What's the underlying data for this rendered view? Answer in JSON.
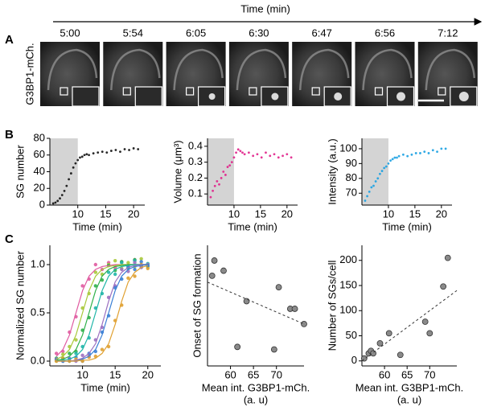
{
  "panel_labels": [
    "A",
    "B",
    "C"
  ],
  "panel_a": {
    "axis_label": "Time (min)",
    "channel": "G3BP1-mCh.",
    "times": [
      "5:00",
      "5:54",
      "6:05",
      "6:30",
      "6:47",
      "6:56",
      "7:12"
    ]
  },
  "chart_data": [
    {
      "type": "scatter",
      "ylabel": "SG number",
      "xlabel": "Time (min)",
      "xlim": [
        5,
        22
      ],
      "ylim": [
        0,
        80
      ],
      "xticks": [
        10,
        15,
        20
      ],
      "yticks": [
        0,
        20,
        40,
        60,
        80
      ],
      "shaded_x": [
        5,
        10
      ],
      "series": [
        {
          "color": "#111111",
          "x": [
            5.6,
            6,
            6.4,
            6.8,
            7.2,
            7.6,
            8,
            8.4,
            8.8,
            9.2,
            9.6,
            10,
            10.4,
            10.8,
            11.2,
            11.6,
            12,
            12.8,
            13.6,
            14.4,
            15.2,
            16,
            16.8,
            17.6,
            18.4,
            19.2,
            20,
            20.8
          ],
          "values": [
            2,
            3,
            5,
            8,
            12,
            17,
            23,
            31,
            38,
            45,
            50,
            54,
            57,
            58,
            60,
            61,
            60,
            62,
            63,
            64,
            63,
            65,
            66,
            64,
            67,
            66,
            68,
            67
          ]
        }
      ]
    },
    {
      "type": "scatter",
      "ylabel": "Volume (μm³)",
      "xlabel": "Time (min)",
      "xlim": [
        5,
        22
      ],
      "ylim": [
        0.03,
        0.45
      ],
      "xticks": [
        10,
        15,
        20
      ],
      "yticks": [
        0.1,
        0.2,
        0.3,
        0.4
      ],
      "shaded_x": [
        5,
        10
      ],
      "series": [
        {
          "color": "#e0218a",
          "x": [
            5.6,
            6,
            6.4,
            6.8,
            7.2,
            7.6,
            8,
            8.4,
            8.8,
            9.2,
            9.6,
            10,
            10.4,
            10.8,
            11.2,
            11.6,
            12,
            12.8,
            13.6,
            14.4,
            15.2,
            16,
            16.8,
            17.6,
            18.4,
            19.2,
            20,
            20.8
          ],
          "values": [
            0.08,
            0.12,
            0.15,
            0.18,
            0.16,
            0.2,
            0.24,
            0.22,
            0.27,
            0.28,
            0.3,
            0.33,
            0.36,
            0.38,
            0.37,
            0.36,
            0.35,
            0.36,
            0.34,
            0.35,
            0.33,
            0.36,
            0.34,
            0.35,
            0.33,
            0.34,
            0.35,
            0.33
          ]
        }
      ]
    },
    {
      "type": "scatter",
      "ylabel": "Intensity (a.u.)",
      "xlabel": "Time (min)",
      "xlim": [
        5,
        22
      ],
      "ylim": [
        62,
        107
      ],
      "xticks": [
        10,
        15,
        20
      ],
      "yticks": [
        70,
        80,
        90,
        100
      ],
      "shaded_x": [
        5,
        10
      ],
      "series": [
        {
          "color": "#1ba1e2",
          "x": [
            5.6,
            6,
            6.4,
            6.8,
            7.2,
            7.6,
            8,
            8.4,
            8.8,
            9.2,
            9.6,
            10,
            10.4,
            10.8,
            11.2,
            11.6,
            12,
            12.8,
            13.6,
            14.4,
            15.2,
            16,
            16.8,
            17.6,
            18.4,
            19.2,
            20,
            20.8
          ],
          "values": [
            65,
            68,
            71,
            74,
            75,
            78,
            80,
            83,
            85,
            87,
            88,
            90,
            92,
            93,
            94,
            94,
            95,
            96,
            95,
            96,
            97,
            97,
            98,
            97,
            99,
            98,
            100,
            100
          ]
        }
      ]
    },
    {
      "type": "scatter",
      "ylabel": "Normalized SG number",
      "xlabel": "Time (min)",
      "xlim": [
        5,
        22
      ],
      "ylim": [
        -0.05,
        1.2
      ],
      "xticks": [
        10,
        15,
        20
      ],
      "yticks": [
        {
          "value": 0,
          "label": "0.0"
        },
        {
          "value": 0.5,
          "label": "0.5"
        },
        {
          "value": 1,
          "label": "1.0"
        }
      ],
      "series": [
        {
          "color": "#e05aa0",
          "x": [
            6,
            7,
            8,
            9,
            10,
            11,
            12,
            13,
            14,
            15,
            16,
            17,
            18,
            19,
            20
          ],
          "values": [
            0.08,
            0.1,
            0.3,
            0.46,
            0.78,
            0.85,
            1.0,
            0.95,
            1.02,
            0.97,
            1.03,
            0.98,
            1.05,
            0.99,
            1.0
          ],
          "fit": [
            0.05,
            0.12,
            0.27,
            0.5,
            0.73,
            0.88,
            0.95,
            0.98,
            0.99,
            1,
            1,
            1,
            1,
            1,
            1
          ]
        },
        {
          "color": "#a8c83a",
          "x": [
            6,
            7,
            8,
            9,
            10,
            11,
            12,
            13,
            14,
            15,
            16,
            17,
            18,
            19,
            20
          ],
          "values": [
            0.0,
            0.07,
            0.15,
            0.22,
            0.55,
            0.7,
            0.92,
            0.9,
            1.0,
            1.04,
            0.96,
            1.02,
            0.98,
            1.06,
            1.0
          ],
          "fit": [
            0.02,
            0.05,
            0.12,
            0.27,
            0.5,
            0.73,
            0.88,
            0.95,
            0.98,
            0.99,
            1,
            1,
            1,
            1,
            1
          ]
        },
        {
          "color": "#2fb04a",
          "x": [
            6,
            7,
            8,
            9,
            10,
            11,
            12,
            13,
            14,
            15,
            16,
            17,
            18,
            19,
            20
          ],
          "values": [
            0.03,
            0.0,
            0.08,
            0.1,
            0.32,
            0.45,
            0.78,
            0.84,
            0.99,
            0.94,
            1.03,
            0.97,
            1.05,
            1.0,
            0.98
          ],
          "fit": [
            0.01,
            0.02,
            0.05,
            0.12,
            0.27,
            0.5,
            0.73,
            0.88,
            0.95,
            0.98,
            0.99,
            1,
            1,
            1,
            1
          ]
        },
        {
          "color": "#1fb5a8",
          "x": [
            6,
            7,
            8,
            9,
            10,
            11,
            12,
            13,
            14,
            15,
            16,
            17,
            18,
            19,
            20
          ],
          "values": [
            0.02,
            0.03,
            0.0,
            0.08,
            0.15,
            0.24,
            0.55,
            0.7,
            0.92,
            0.9,
            1.02,
            0.96,
            1.04,
            0.98,
            1.01
          ],
          "fit": [
            0.0,
            0.01,
            0.02,
            0.05,
            0.12,
            0.27,
            0.5,
            0.73,
            0.88,
            0.95,
            0.98,
            0.99,
            1,
            1,
            1
          ]
        },
        {
          "color": "#9b6fc0",
          "x": [
            6,
            7,
            8,
            9,
            10,
            11,
            12,
            13,
            14,
            15,
            16,
            17,
            18,
            19,
            20
          ],
          "values": [
            0.02,
            0.0,
            0.03,
            0.0,
            0.06,
            0.05,
            0.22,
            0.35,
            0.66,
            0.78,
            0.95,
            0.93,
            1.02,
            0.97,
            1.0
          ],
          "fit": [
            0,
            0,
            0,
            0.01,
            0.03,
            0.08,
            0.18,
            0.38,
            0.62,
            0.82,
            0.92,
            0.97,
            0.99,
            1,
            1
          ]
        },
        {
          "color": "#3a7fd5",
          "x": [
            6,
            7,
            8,
            9,
            10,
            11,
            12,
            13,
            14,
            15,
            16,
            17,
            18,
            19,
            20
          ],
          "values": [
            0.01,
            0.0,
            0.02,
            0.04,
            0.0,
            0.08,
            0.1,
            0.3,
            0.47,
            0.76,
            0.85,
            0.98,
            0.95,
            1.03,
            0.99
          ],
          "fit": [
            0,
            0,
            0,
            0,
            0.02,
            0.05,
            0.12,
            0.27,
            0.5,
            0.73,
            0.88,
            0.95,
            0.98,
            0.99,
            1
          ]
        },
        {
          "color": "#e0a030",
          "x": [
            6,
            7,
            8,
            9,
            10,
            11,
            12,
            13,
            14,
            15,
            16,
            17,
            18,
            19,
            20
          ],
          "values": [
            0.0,
            0.03,
            0.0,
            0.02,
            0.0,
            0.04,
            0.05,
            0.12,
            0.15,
            0.42,
            0.58,
            0.86,
            0.88,
            1.0,
            0.96
          ],
          "fit": [
            0,
            0,
            0,
            0,
            0.01,
            0.01,
            0.03,
            0.08,
            0.18,
            0.38,
            0.62,
            0.82,
            0.92,
            0.97,
            0.99
          ]
        }
      ]
    },
    {
      "type": "scatter",
      "ylabel": "Onset of SG formation",
      "xlabel": [
        "Mean int. G3BP1-mCh.",
        "(a. u)"
      ],
      "xlim": [
        55,
        76
      ],
      "ylim": [
        5.5,
        15
      ],
      "xticks": [
        60,
        65,
        70
      ],
      "series": [
        {
          "color": "#8a8a8a",
          "x": [
            56,
            56.5,
            58.5,
            61.5,
            63.5,
            69.5,
            70.5,
            73,
            74,
            76
          ],
          "values": [
            12.6,
            13.8,
            13,
            7,
            10.6,
            6.8,
            11.7,
            10,
            10,
            8.8
          ]
        }
      ],
      "trend": {
        "x": [
          55,
          76
        ],
        "values": [
          12.1,
          8.8
        ]
      }
    },
    {
      "type": "scatter",
      "ylabel": "Number of SGs/cell",
      "xlabel": [
        "Mean int. G3BP1-mCh.",
        "(a. u)"
      ],
      "xlim": [
        55,
        76
      ],
      "ylim": [
        -10,
        230
      ],
      "xticks": [
        60,
        65,
        70
      ],
      "yticks": [
        0,
        50,
        100,
        150,
        200
      ],
      "series": [
        {
          "color": "#8a8a8a",
          "x": [
            55.5,
            56.5,
            57,
            57.5,
            59,
            61,
            63.5,
            69,
            70,
            73,
            74
          ],
          "values": [
            5,
            15,
            20,
            15,
            35,
            55,
            12,
            78,
            55,
            148,
            205
          ]
        }
      ],
      "trend": {
        "x": [
          55,
          76
        ],
        "values": [
          0,
          140
        ]
      }
    }
  ]
}
